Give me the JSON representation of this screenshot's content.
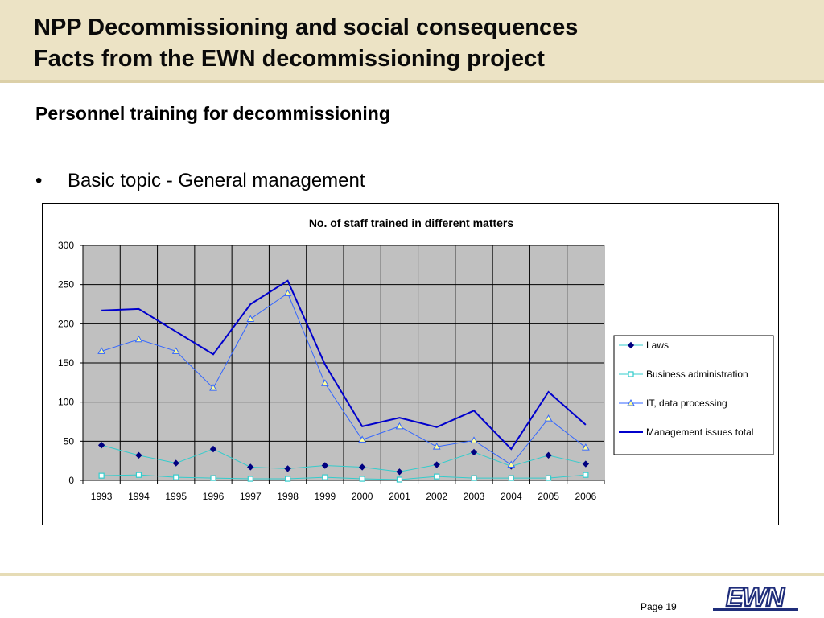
{
  "slide": {
    "title_line1": "NPP Decommissioning and social consequences",
    "title_line2": "Facts from the EWN decommissioning project",
    "subtitle": "Personnel training for decommissioning",
    "bullet_mark": "•",
    "bullet_text": "Basic topic - General management",
    "page_label": "Page 19",
    "logo_text": "EWN"
  },
  "colors": {
    "header_bg": "#ece3c5",
    "plot_bg": "#c0c0c0",
    "laws": "#000080",
    "business_admin": "#33cccc",
    "it": "#3366ff",
    "management": "#0000cc",
    "logo": "#1f2d7a"
  },
  "chart_data": {
    "type": "line",
    "title": "No. of staff trained in different matters",
    "xlabel": "",
    "ylabel": "",
    "categories": [
      "1993",
      "1994",
      "1995",
      "1996",
      "1997",
      "1998",
      "1999",
      "2000",
      "2001",
      "2002",
      "2003",
      "2004",
      "2005",
      "2006"
    ],
    "ylim": [
      0,
      300
    ],
    "yticks": [
      0,
      50,
      100,
      150,
      200,
      250,
      300
    ],
    "grid": true,
    "legend_position": "right",
    "series": [
      {
        "name": "Laws",
        "marker": "diamond",
        "color": "#000080",
        "line_color": "#33cccc",
        "values": [
          45,
          32,
          22,
          40,
          17,
          15,
          19,
          17,
          11,
          20,
          36,
          18,
          32,
          21
        ]
      },
      {
        "name": "Business administration",
        "marker": "square",
        "color": "#33cccc",
        "line_color": "#33cccc",
        "values": [
          6,
          7,
          4,
          3,
          2,
          2,
          4,
          2,
          1,
          5,
          3,
          3,
          3,
          7
        ]
      },
      {
        "name": "IT, data processing",
        "marker": "triangle",
        "color": "#3366ff",
        "line_color": "#3366ff",
        "values": [
          165,
          180,
          165,
          118,
          206,
          239,
          124,
          52,
          69,
          43,
          51,
          20,
          79,
          42
        ]
      },
      {
        "name": "Management issues total",
        "marker": "none",
        "color": "#0000cc",
        "line_color": "#0000cc",
        "values": [
          217,
          219,
          190,
          161,
          225,
          255,
          148,
          69,
          80,
          68,
          89,
          40,
          113,
          71
        ]
      }
    ]
  }
}
